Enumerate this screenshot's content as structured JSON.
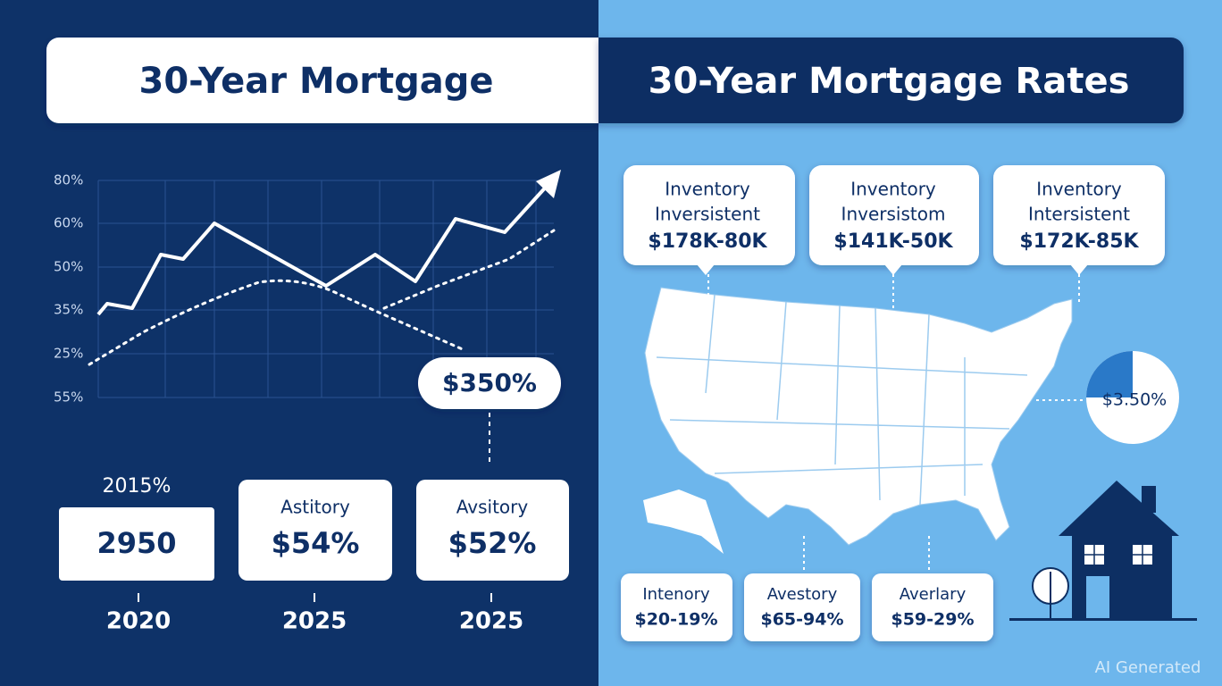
{
  "left_panel": {
    "title": "30-Year Mortgage",
    "y_labels": [
      "80%",
      "60%",
      "50%",
      "35%",
      "25%",
      "55%"
    ],
    "callout": "$350%",
    "cards": [
      {
        "top": "2015%",
        "value": "2950",
        "year": "2020"
      },
      {
        "top": "Astitory",
        "value": "$54%",
        "year": "2025"
      },
      {
        "top": "Avsitory",
        "value": "$52%",
        "year": "2025"
      }
    ]
  },
  "right_panel": {
    "title": "30-Year Mortgage Rates",
    "top_cards": [
      {
        "lines": [
          "Inventory",
          "Inversistent",
          "$178K-80K"
        ]
      },
      {
        "lines": [
          "Inventory",
          "Inversistom",
          "$141K-50K"
        ]
      },
      {
        "lines": [
          "Inventory",
          "Intersistent",
          "$172K-85K"
        ]
      }
    ],
    "pie_label": "$3.50%",
    "bottom_cards": [
      {
        "lines": [
          "Intenory",
          "$20-19%"
        ]
      },
      {
        "lines": [
          "Avestory",
          "$65-94%"
        ]
      },
      {
        "lines": [
          "Averlary",
          "$59-29%"
        ]
      }
    ]
  },
  "watermark": "AI Generated"
}
